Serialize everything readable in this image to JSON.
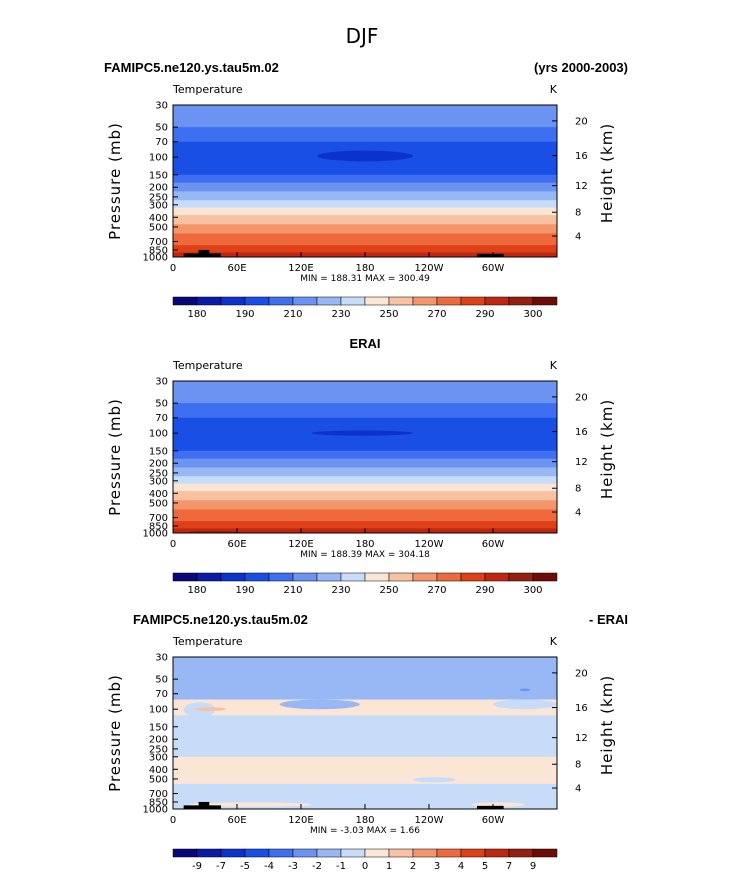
{
  "figure_title": "DJF",
  "chart_data": [
    {
      "type": "heatmap",
      "header_left": "FAMIPC5.ne120.ys.tau5m.02",
      "header_right": "(yrs 2000-2003)",
      "variable": "Temperature",
      "units": "K",
      "ylabel_left": "Pressure (mb)",
      "ylabel_right": "Height (km)",
      "pressure_ticks": [
        "30",
        "50",
        "70",
        "100",
        "150",
        "200",
        "250",
        "300",
        "400",
        "500",
        "700",
        "850",
        "1000"
      ],
      "height_ticks": [
        "20",
        "16",
        "12",
        "8",
        "4"
      ],
      "lon_ticks": [
        "0",
        "60E",
        "120E",
        "180",
        "120W",
        "60W"
      ],
      "stats": "MIN = 188.31   MAX = 300.49",
      "colorbar": {
        "labels": [
          "180",
          "190",
          "210",
          "230",
          "250",
          "270",
          "290",
          "300"
        ],
        "colors": [
          "#08087a",
          "#0a1ba8",
          "#0c32cc",
          "#1a4fe6",
          "#3d6ff0",
          "#6a93f2",
          "#98b8f5",
          "#c7dcf9",
          "#fbe6d6",
          "#f8c1a2",
          "#f4966b",
          "#ee6a3c",
          "#df4018",
          "#bf2710",
          "#962010",
          "#6f0c08"
        ]
      },
      "bands": [
        {
          "p": [
            30,
            50
          ],
          "color": "#6a93f2"
        },
        {
          "p": [
            50,
            70
          ],
          "color": "#3d6ff0"
        },
        {
          "p": [
            70,
            150
          ],
          "color": "#1a4fe6"
        },
        {
          "p": [
            150,
            180
          ],
          "color": "#3d6ff0"
        },
        {
          "p": [
            180,
            220
          ],
          "color": "#6a93f2"
        },
        {
          "p": [
            220,
            270
          ],
          "color": "#98b8f5"
        },
        {
          "p": [
            270,
            320
          ],
          "color": "#c7dcf9"
        },
        {
          "p": [
            320,
            380
          ],
          "color": "#fbe6d6"
        },
        {
          "p": [
            380,
            470
          ],
          "color": "#f8c1a2"
        },
        {
          "p": [
            470,
            580
          ],
          "color": "#f4966b"
        },
        {
          "p": [
            580,
            760
          ],
          "color": "#ee6a3c"
        },
        {
          "p": [
            760,
            900
          ],
          "color": "#df4018"
        },
        {
          "p": [
            900,
            1000
          ],
          "color": "#bf2710"
        }
      ],
      "features": [
        {
          "lon": [
            135,
            225
          ],
          "p": [
            86,
            110
          ],
          "color": "#0c32cc"
        }
      ],
      "terrain": [
        {
          "lon": [
            10,
            45
          ],
          "p": [
            920,
            1000
          ]
        },
        {
          "lon": [
            24,
            34
          ],
          "p": [
            850,
            1000
          ]
        },
        {
          "lon": [
            285,
            310
          ],
          "p": [
            930,
            1000
          ]
        }
      ]
    },
    {
      "type": "heatmap",
      "header_center": "ERAI",
      "variable": "Temperature",
      "units": "K",
      "ylabel_left": "Pressure (mb)",
      "ylabel_right": "Height (km)",
      "pressure_ticks": [
        "30",
        "50",
        "70",
        "100",
        "150",
        "200",
        "250",
        "300",
        "400",
        "500",
        "700",
        "850",
        "1000"
      ],
      "height_ticks": [
        "20",
        "16",
        "12",
        "8",
        "4"
      ],
      "lon_ticks": [
        "0",
        "60E",
        "120E",
        "180",
        "120W",
        "60W"
      ],
      "stats": "MIN = 188.39   MAX = 304.18",
      "colorbar": {
        "labels": [
          "180",
          "190",
          "210",
          "230",
          "250",
          "270",
          "290",
          "300"
        ],
        "colors": [
          "#08087a",
          "#0a1ba8",
          "#0c32cc",
          "#1a4fe6",
          "#3d6ff0",
          "#6a93f2",
          "#98b8f5",
          "#c7dcf9",
          "#fbe6d6",
          "#f8c1a2",
          "#f4966b",
          "#ee6a3c",
          "#df4018",
          "#bf2710",
          "#962010",
          "#6f0c08"
        ]
      },
      "bands": [
        {
          "p": [
            30,
            50
          ],
          "color": "#6a93f2"
        },
        {
          "p": [
            50,
            70
          ],
          "color": "#3d6ff0"
        },
        {
          "p": [
            70,
            150
          ],
          "color": "#1a4fe6"
        },
        {
          "p": [
            150,
            180
          ],
          "color": "#3d6ff0"
        },
        {
          "p": [
            180,
            220
          ],
          "color": "#6a93f2"
        },
        {
          "p": [
            220,
            270
          ],
          "color": "#98b8f5"
        },
        {
          "p": [
            270,
            320
          ],
          "color": "#c7dcf9"
        },
        {
          "p": [
            320,
            380
          ],
          "color": "#fbe6d6"
        },
        {
          "p": [
            380,
            470
          ],
          "color": "#f8c1a2"
        },
        {
          "p": [
            470,
            580
          ],
          "color": "#f4966b"
        },
        {
          "p": [
            580,
            760
          ],
          "color": "#ee6a3c"
        },
        {
          "p": [
            760,
            900
          ],
          "color": "#df4018"
        },
        {
          "p": [
            900,
            1000
          ],
          "color": "#bf2710"
        }
      ],
      "features": [
        {
          "lon": [
            130,
            225
          ],
          "p": [
            94,
            106
          ],
          "color": "#0c32cc"
        },
        {
          "lon": [
            15,
            60
          ],
          "p": [
            950,
            1000
          ],
          "color": "#962010"
        }
      ],
      "terrain": []
    },
    {
      "type": "heatmap",
      "header_left": "FAMIPC5.ne120.ys.tau5m.02",
      "header_right": "- ERAI",
      "variable": "Temperature",
      "units": "K",
      "ylabel_left": "Pressure (mb)",
      "ylabel_right": "Height (km)",
      "pressure_ticks": [
        "30",
        "50",
        "70",
        "100",
        "150",
        "200",
        "250",
        "300",
        "400",
        "500",
        "700",
        "850",
        "1000"
      ],
      "height_ticks": [
        "20",
        "16",
        "12",
        "8",
        "4"
      ],
      "lon_ticks": [
        "0",
        "60E",
        "120E",
        "180",
        "120W",
        "60W"
      ],
      "stats": "MIN =  -3.03   MAX =   1.66",
      "colorbar": {
        "labels": [
          "-9",
          "-7",
          "-5",
          "-4",
          "-3",
          "-2",
          "-1",
          "0",
          "1",
          "2",
          "3",
          "4",
          "5",
          "7",
          "9"
        ],
        "colors": [
          "#08087a",
          "#0a1ba8",
          "#0c32cc",
          "#1a4fe6",
          "#3d6ff0",
          "#6a93f2",
          "#98b8f5",
          "#c7dcf9",
          "#fbe6d6",
          "#f8c1a2",
          "#f4966b",
          "#ee6a3c",
          "#df4018",
          "#bf2710",
          "#962010",
          "#6f0c08"
        ]
      },
      "bands": [
        {
          "p": [
            30,
            80
          ],
          "color": "#98b8f5"
        },
        {
          "p": [
            80,
            115
          ],
          "color": "#fbe6d6"
        },
        {
          "p": [
            115,
            300
          ],
          "color": "#c7dcf9"
        },
        {
          "p": [
            300,
            560
          ],
          "color": "#fbe6d6"
        },
        {
          "p": [
            560,
            1000
          ],
          "color": "#c7dcf9"
        }
      ],
      "features": [
        {
          "lon": [
            100,
            175
          ],
          "p": [
            80,
            100
          ],
          "color": "#98b8f5"
        },
        {
          "lon": [
            10,
            40
          ],
          "p": [
            85,
            120
          ],
          "color": "#c7dcf9"
        },
        {
          "lon": [
            20,
            50
          ],
          "p": [
            96,
            104
          ],
          "color": "#f8c1a2"
        },
        {
          "lon": [
            300,
            360
          ],
          "p": [
            80,
            100
          ],
          "color": "#c7dcf9"
        },
        {
          "lon": [
            225,
            265
          ],
          "p": [
            480,
            540
          ],
          "color": "#c7dcf9"
        },
        {
          "lon": [
            15,
            130
          ],
          "p": [
            860,
            950
          ],
          "color": "#fbe6d6"
        },
        {
          "lon": [
            280,
            330
          ],
          "p": [
            860,
            950
          ],
          "color": "#fbe6d6"
        },
        {
          "lon": [
            325,
            335
          ],
          "p": [
            62,
            66
          ],
          "color": "#6a93f2"
        }
      ],
      "terrain": [
        {
          "lon": [
            10,
            45
          ],
          "p": [
            920,
            1000
          ]
        },
        {
          "lon": [
            24,
            34
          ],
          "p": [
            850,
            1000
          ]
        },
        {
          "lon": [
            285,
            310
          ],
          "p": [
            930,
            1000
          ]
        }
      ]
    }
  ]
}
